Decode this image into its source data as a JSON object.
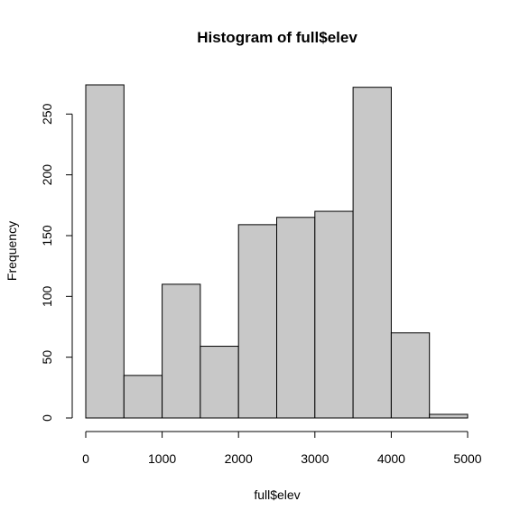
{
  "chart_data": {
    "type": "bar",
    "title": "Histogram of full$elev",
    "xlabel": "full$elev",
    "ylabel": "Frequency",
    "bin_edges": [
      0,
      500,
      1000,
      1500,
      2000,
      2500,
      3000,
      3500,
      4000,
      4500,
      5000
    ],
    "values": [
      274,
      35,
      110,
      59,
      159,
      165,
      170,
      272,
      70,
      3
    ],
    "xlim": [
      0,
      5000
    ],
    "ylim": [
      0,
      274
    ],
    "x_ticks": [
      0,
      1000,
      2000,
      3000,
      4000,
      5000
    ],
    "y_ticks": [
      0,
      50,
      100,
      150,
      200,
      250
    ],
    "bar_color": "#c8c8c8",
    "grid": false
  }
}
